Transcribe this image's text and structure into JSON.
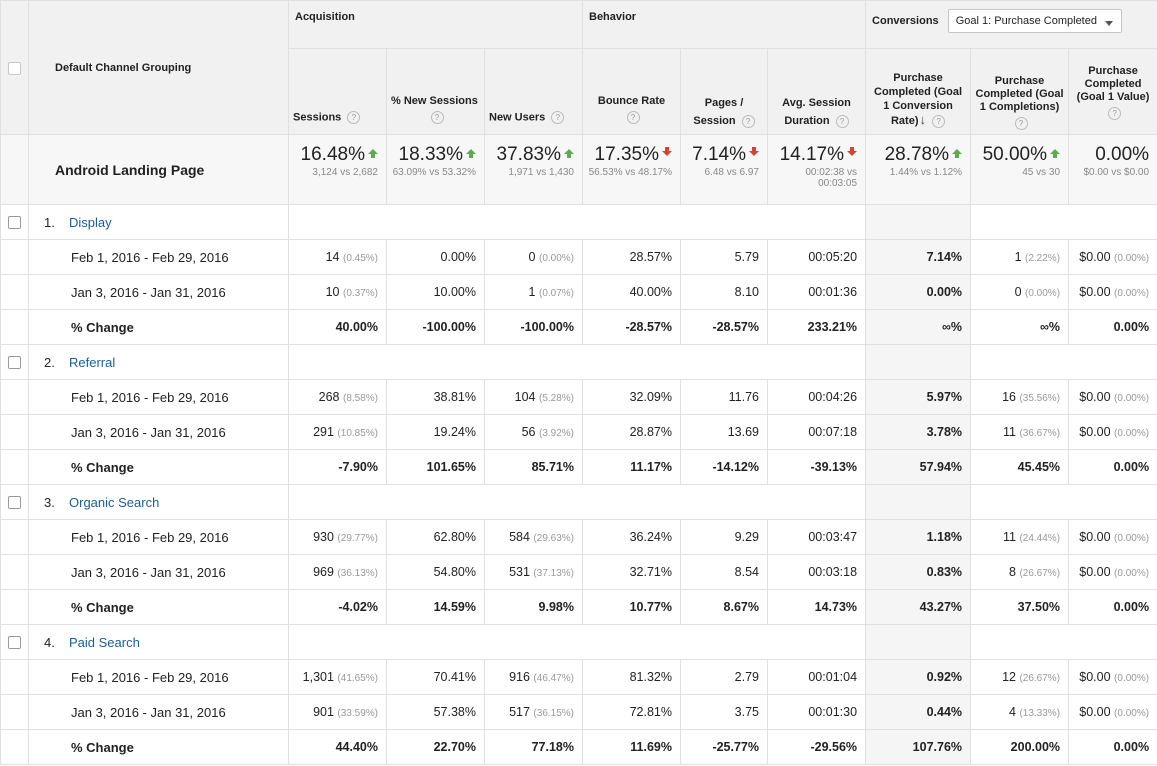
{
  "header": {
    "dimension_label": "Default Channel Grouping",
    "groups": {
      "acquisition": "Acquisition",
      "behavior": "Behavior",
      "conversions": "Conversions"
    },
    "goal_dropdown": "Goal 1: Purchase Completed",
    "metrics": [
      "Sessions",
      "% New Sessions",
      "New Users",
      "Bounce Rate",
      "Pages / Session",
      "Avg. Session Duration",
      "Purchase Completed (Goal 1 Conversion Rate)",
      "Purchase Completed (Goal 1 Completions)",
      "Purchase Completed (Goal 1 Value)"
    ],
    "help_icon": "?",
    "sort_icon": "↓"
  },
  "summary": {
    "label": "Android Landing Page",
    "cells": [
      {
        "value": "16.48%",
        "dir": "up",
        "sub": "3,124 vs 2,682"
      },
      {
        "value": "18.33%",
        "dir": "up",
        "sub": "63.09% vs 53.32%"
      },
      {
        "value": "37.83%",
        "dir": "up",
        "sub": "1,971 vs 1,430"
      },
      {
        "value": "17.35%",
        "dir": "down",
        "sub": "56.53% vs 48.17%"
      },
      {
        "value": "7.14%",
        "dir": "down",
        "sub": "6.48 vs 6.97"
      },
      {
        "value": "14.17%",
        "dir": "down",
        "sub": "00:02:38 vs 00:03:05"
      },
      {
        "value": "28.78%",
        "dir": "up",
        "sub": "1.44% vs 1.12%"
      },
      {
        "value": "50.00%",
        "dir": "up",
        "sub": "45 vs 30"
      },
      {
        "value": "0.00%",
        "dir": "",
        "sub": "$0.00 vs $0.00"
      }
    ]
  },
  "channels": [
    {
      "num": "1.",
      "name": "Display",
      "rows": [
        {
          "label": "Feb 1, 2016 - Feb 29, 2016",
          "cells": [
            [
              "14",
              "(0.45%)"
            ],
            [
              "0.00%",
              ""
            ],
            [
              "0",
              "(0.00%)"
            ],
            [
              "28.57%",
              ""
            ],
            [
              "5.79",
              ""
            ],
            [
              "00:05:20",
              ""
            ],
            [
              "7.14%",
              ""
            ],
            [
              "1",
              "(2.22%)"
            ],
            [
              "$0.00",
              "(0.00%)"
            ]
          ]
        },
        {
          "label": "Jan 3, 2016 - Jan 31, 2016",
          "cells": [
            [
              "10",
              "(0.37%)"
            ],
            [
              "10.00%",
              ""
            ],
            [
              "1",
              "(0.07%)"
            ],
            [
              "40.00%",
              ""
            ],
            [
              "8.10",
              ""
            ],
            [
              "00:01:36",
              ""
            ],
            [
              "0.00%",
              ""
            ],
            [
              "0",
              "(0.00%)"
            ],
            [
              "$0.00",
              "(0.00%)"
            ]
          ]
        },
        {
          "label": "% Change",
          "cells": [
            [
              "40.00%",
              ""
            ],
            [
              "-100.00%",
              ""
            ],
            [
              "-100.00%",
              ""
            ],
            [
              "-28.57%",
              ""
            ],
            [
              "-28.57%",
              ""
            ],
            [
              "233.21%",
              ""
            ],
            [
              "∞%",
              ""
            ],
            [
              "∞%",
              ""
            ],
            [
              "0.00%",
              ""
            ]
          ]
        }
      ]
    },
    {
      "num": "2.",
      "name": "Referral",
      "rows": [
        {
          "label": "Feb 1, 2016 - Feb 29, 2016",
          "cells": [
            [
              "268",
              "(8.58%)"
            ],
            [
              "38.81%",
              ""
            ],
            [
              "104",
              "(5.28%)"
            ],
            [
              "32.09%",
              ""
            ],
            [
              "11.76",
              ""
            ],
            [
              "00:04:26",
              ""
            ],
            [
              "5.97%",
              ""
            ],
            [
              "16",
              "(35.56%)"
            ],
            [
              "$0.00",
              "(0.00%)"
            ]
          ]
        },
        {
          "label": "Jan 3, 2016 - Jan 31, 2016",
          "cells": [
            [
              "291",
              "(10.85%)"
            ],
            [
              "19.24%",
              ""
            ],
            [
              "56",
              "(3.92%)"
            ],
            [
              "28.87%",
              ""
            ],
            [
              "13.69",
              ""
            ],
            [
              "00:07:18",
              ""
            ],
            [
              "3.78%",
              ""
            ],
            [
              "11",
              "(36.67%)"
            ],
            [
              "$0.00",
              "(0.00%)"
            ]
          ]
        },
        {
          "label": "% Change",
          "cells": [
            [
              "-7.90%",
              ""
            ],
            [
              "101.65%",
              ""
            ],
            [
              "85.71%",
              ""
            ],
            [
              "11.17%",
              ""
            ],
            [
              "-14.12%",
              ""
            ],
            [
              "-39.13%",
              ""
            ],
            [
              "57.94%",
              ""
            ],
            [
              "45.45%",
              ""
            ],
            [
              "0.00%",
              ""
            ]
          ]
        }
      ]
    },
    {
      "num": "3.",
      "name": "Organic Search",
      "rows": [
        {
          "label": "Feb 1, 2016 - Feb 29, 2016",
          "cells": [
            [
              "930",
              "(29.77%)"
            ],
            [
              "62.80%",
              ""
            ],
            [
              "584",
              "(29.63%)"
            ],
            [
              "36.24%",
              ""
            ],
            [
              "9.29",
              ""
            ],
            [
              "00:03:47",
              ""
            ],
            [
              "1.18%",
              ""
            ],
            [
              "11",
              "(24.44%)"
            ],
            [
              "$0.00",
              "(0.00%)"
            ]
          ]
        },
        {
          "label": "Jan 3, 2016 - Jan 31, 2016",
          "cells": [
            [
              "969",
              "(36.13%)"
            ],
            [
              "54.80%",
              ""
            ],
            [
              "531",
              "(37.13%)"
            ],
            [
              "32.71%",
              ""
            ],
            [
              "8.54",
              ""
            ],
            [
              "00:03:18",
              ""
            ],
            [
              "0.83%",
              ""
            ],
            [
              "8",
              "(26.67%)"
            ],
            [
              "$0.00",
              "(0.00%)"
            ]
          ]
        },
        {
          "label": "% Change",
          "cells": [
            [
              "-4.02%",
              ""
            ],
            [
              "14.59%",
              ""
            ],
            [
              "9.98%",
              ""
            ],
            [
              "10.77%",
              ""
            ],
            [
              "8.67%",
              ""
            ],
            [
              "14.73%",
              ""
            ],
            [
              "43.27%",
              ""
            ],
            [
              "37.50%",
              ""
            ],
            [
              "0.00%",
              ""
            ]
          ]
        }
      ]
    },
    {
      "num": "4.",
      "name": "Paid Search",
      "rows": [
        {
          "label": "Feb 1, 2016 - Feb 29, 2016",
          "cells": [
            [
              "1,301",
              "(41.65%)"
            ],
            [
              "70.41%",
              ""
            ],
            [
              "916",
              "(46.47%)"
            ],
            [
              "81.32%",
              ""
            ],
            [
              "2.79",
              ""
            ],
            [
              "00:01:04",
              ""
            ],
            [
              "0.92%",
              ""
            ],
            [
              "12",
              "(26.67%)"
            ],
            [
              "$0.00",
              "(0.00%)"
            ]
          ]
        },
        {
          "label": "Jan 3, 2016 - Jan 31, 2016",
          "cells": [
            [
              "901",
              "(33.59%)"
            ],
            [
              "57.38%",
              ""
            ],
            [
              "517",
              "(36.15%)"
            ],
            [
              "72.81%",
              ""
            ],
            [
              "3.75",
              ""
            ],
            [
              "00:01:30",
              ""
            ],
            [
              "0.44%",
              ""
            ],
            [
              "4",
              "(13.33%)"
            ],
            [
              "$0.00",
              "(0.00%)"
            ]
          ]
        },
        {
          "label": "% Change",
          "cells": [
            [
              "44.40%",
              ""
            ],
            [
              "22.70%",
              ""
            ],
            [
              "77.18%",
              ""
            ],
            [
              "11.69%",
              ""
            ],
            [
              "-25.77%",
              ""
            ],
            [
              "-29.56%",
              ""
            ],
            [
              "107.76%",
              ""
            ],
            [
              "200.00%",
              ""
            ],
            [
              "0.00%",
              ""
            ]
          ]
        }
      ]
    }
  ]
}
